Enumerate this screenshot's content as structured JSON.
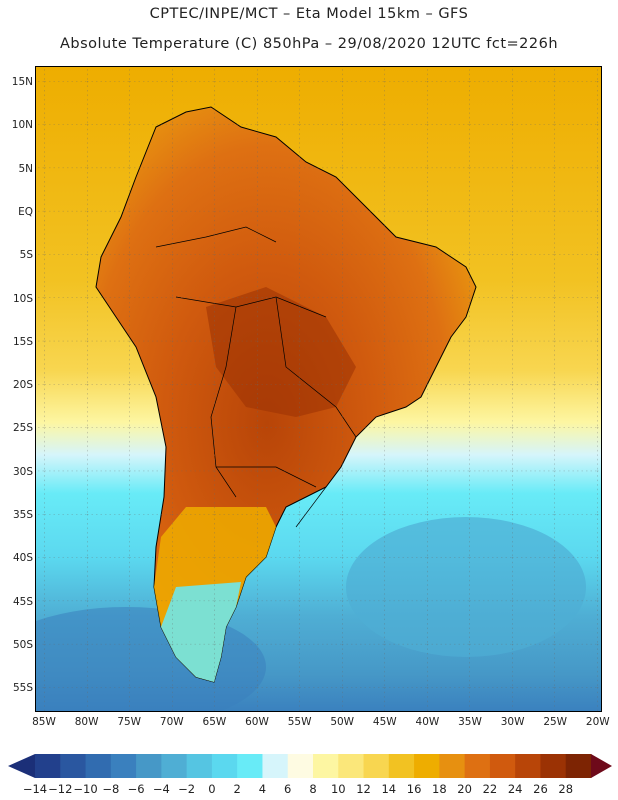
{
  "title": {
    "line1": "CPTEC/INPE/MCT –  Eta Model 15km – GFS",
    "line2": "Absolute Temperature (C) 850hPa – 29/08/2020 12UTC fct=226h"
  },
  "map": {
    "region": "South America",
    "lat_labels": [
      "15N",
      "10N",
      "5N",
      "EQ",
      "5S",
      "10S",
      "15S",
      "20S",
      "25S",
      "30S",
      "35S",
      "40S",
      "45S",
      "50S",
      "55S"
    ],
    "lon_labels": [
      "85W",
      "80W",
      "75W",
      "70W",
      "65W",
      "60W",
      "55W",
      "50W",
      "45W",
      "40W",
      "35W",
      "30W",
      "25W",
      "20W"
    ],
    "lat_range": [
      17.5,
      -57.5
    ],
    "lon_range": [
      -85.5,
      -19.5
    ]
  },
  "colorbar": {
    "labels": [
      "-14",
      "-12",
      "-10",
      "-8",
      "-6",
      "-4",
      "-2",
      "0",
      "2",
      "4",
      "6",
      "8",
      "10",
      "12",
      "14",
      "16",
      "18",
      "20",
      "22",
      "24",
      "26",
      "28"
    ],
    "colors": [
      "#22408c",
      "#2a57a0",
      "#316cb0",
      "#3a80be",
      "#4698c7",
      "#4faed4",
      "#55c5e2",
      "#5bd8ef",
      "#68ebf7",
      "#d6f5fb",
      "#fefbe2",
      "#fdf6a2",
      "#fbe77a",
      "#f8d650",
      "#f2c222",
      "#eead00",
      "#e79010",
      "#de7012",
      "#d05a0e",
      "#b84508",
      "#9b3204",
      "#7d2403"
    ],
    "low_arrow_color": "#1b2f78",
    "high_arrow_color": "#6e0a1a"
  }
}
